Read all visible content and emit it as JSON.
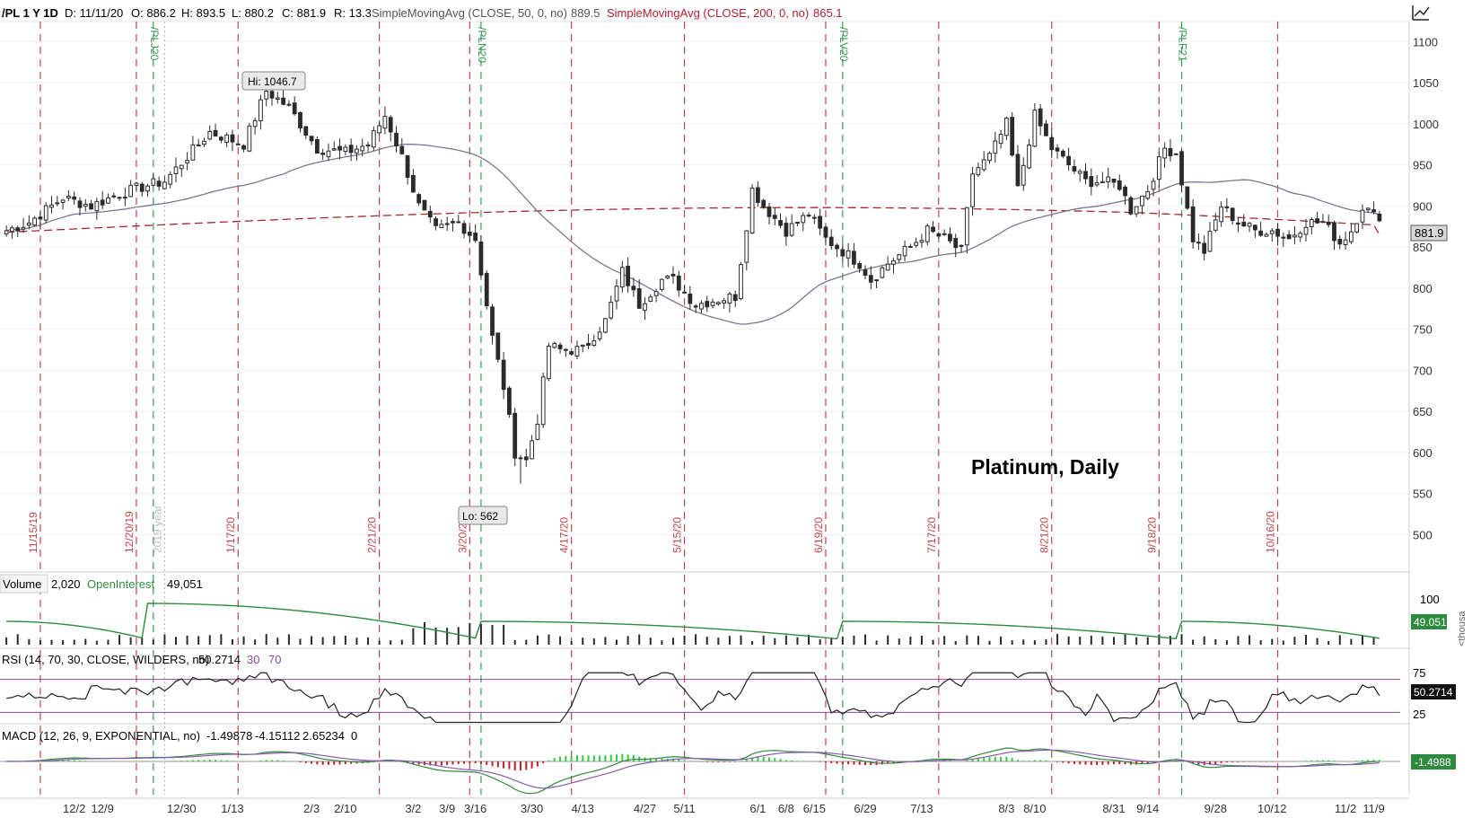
{
  "header": {
    "symbol": "/PL 1 Y 1D",
    "date": "D: 11/11/20",
    "open": "O: 886.2",
    "high": "H: 893.5",
    "low": "L: 880.2",
    "close": "C: 881.9",
    "range": "R: 13.3",
    "sma50_label": "SimpleMovingAvg (CLOSE, 50, 0, no)",
    "sma50_value": "889.5",
    "sma200_label": "SimpleMovingAvg (CLOSE, 200, 0, no)",
    "sma200_value": "865.1"
  },
  "annotation_title": "Platinum, Daily",
  "price_badge": "881.9",
  "hi_label": "Hi: 1046.7",
  "lo_label": "Lo: 562",
  "colors": {
    "up": "#2a2a2a",
    "down": "#2a2a2a",
    "sma50": "#7a7890",
    "sma200": "#a02830",
    "expiry_line": "#c0464e",
    "roll_line": "#3a9a5a",
    "rsi": "#222222",
    "rsi_bounds": "#8a4a9e",
    "macd_line": "#2e8b3e",
    "macd_signal": "#8a5ab0",
    "hist_pos": "#2fcb3f",
    "hist_neg": "#c0202a",
    "volume_bar": "#2a2a2a",
    "open_interest": "#2e8b3e"
  },
  "vertical_markers": [
    {
      "label": "11/15/19",
      "type": "expiry"
    },
    {
      "label": "12/20/19",
      "type": "expiry"
    },
    {
      "label": "/PLJ20",
      "type": "roll"
    },
    {
      "label": "2019 year",
      "type": "year"
    },
    {
      "label": "1/17/20",
      "type": "expiry"
    },
    {
      "label": "2/21/20",
      "type": "expiry"
    },
    {
      "label": "3/20/20",
      "type": "expiry"
    },
    {
      "label": "/PLN20",
      "type": "roll"
    },
    {
      "label": "4/17/20",
      "type": "expiry"
    },
    {
      "label": "5/15/20",
      "type": "expiry"
    },
    {
      "label": "6/19/20",
      "type": "expiry"
    },
    {
      "label": "/PLV20",
      "type": "roll"
    },
    {
      "label": "7/17/20",
      "type": "expiry"
    },
    {
      "label": "8/21/20",
      "type": "expiry"
    },
    {
      "label": "9/18/20",
      "type": "expiry"
    },
    {
      "label": "/PLF21",
      "type": "roll"
    },
    {
      "label": "10/16/20",
      "type": "expiry"
    }
  ],
  "volume_panel": {
    "label": "Volume",
    "value": "2,020",
    "oi_label": "OpenInterest",
    "oi_value": "49,051",
    "oi_badge": "49.051",
    "tick_top": "100",
    "unit": "<thousa"
  },
  "rsi_panel": {
    "label": "RSI (14, 70, 30, CLOSE, WILDERS, no)",
    "value": "50.2714",
    "lower": "30",
    "upper": "70",
    "badge": "50.2714",
    "ticks": [
      "75",
      "25"
    ]
  },
  "macd_panel": {
    "label": "MACD (12, 26, 9, EXPONENTIAL, no)",
    "value": "-1.49878",
    "avg": "-4.15112",
    "diff": "2.65234",
    "zero": "0",
    "badge": "-1.4988"
  },
  "chart_data": {
    "type": "candlestick",
    "title": "Platinum, Daily",
    "ylim": [
      460,
      1120
    ],
    "y_ticks": [
      500,
      550,
      600,
      650,
      700,
      750,
      800,
      850,
      900,
      950,
      1000,
      1050,
      1100
    ],
    "x_tick_labels": [
      "12/2",
      "12/9",
      "12/30",
      "1/13",
      "2/3",
      "2/10",
      "3/2",
      "3/9",
      "3/16",
      "3/30",
      "4/13",
      "4/27",
      "5/11",
      "6/1",
      "6/8",
      "6/15",
      "6/29",
      "7/13",
      "8/3",
      "8/10",
      "8/31",
      "9/14",
      "9/28",
      "10/12",
      "11/2",
      "11/9"
    ],
    "close_anchors": [
      [
        0,
        870
      ],
      [
        4,
        880
      ],
      [
        10,
        910
      ],
      [
        15,
        900
      ],
      [
        20,
        915
      ],
      [
        25,
        925
      ],
      [
        28,
        930
      ],
      [
        32,
        960
      ],
      [
        36,
        990
      ],
      [
        42,
        975
      ],
      [
        46,
        1040
      ],
      [
        50,
        1020
      ],
      [
        55,
        970
      ],
      [
        60,
        965
      ],
      [
        64,
        975
      ],
      [
        67,
        1010
      ],
      [
        70,
        960
      ],
      [
        73,
        900
      ],
      [
        76,
        870
      ],
      [
        80,
        880
      ],
      [
        83,
        860
      ],
      [
        86,
        740
      ],
      [
        88,
        680
      ],
      [
        90,
        600
      ],
      [
        92,
        590
      ],
      [
        94,
        640
      ],
      [
        96,
        730
      ],
      [
        98,
        725
      ],
      [
        102,
        725
      ],
      [
        106,
        760
      ],
      [
        109,
        820
      ],
      [
        112,
        780
      ],
      [
        116,
        810
      ],
      [
        118,
        810
      ],
      [
        122,
        780
      ],
      [
        125,
        785
      ],
      [
        129,
        790
      ],
      [
        132,
        920
      ],
      [
        134,
        900
      ],
      [
        138,
        870
      ],
      [
        142,
        890
      ],
      [
        145,
        860
      ],
      [
        148,
        845
      ],
      [
        151,
        830
      ],
      [
        153,
        810
      ],
      [
        156,
        830
      ],
      [
        160,
        850
      ],
      [
        163,
        870
      ],
      [
        166,
        860
      ],
      [
        169,
        845
      ],
      [
        171,
        940
      ],
      [
        174,
        960
      ],
      [
        177,
        1000
      ],
      [
        179,
        920
      ],
      [
        182,
        1010
      ],
      [
        185,
        970
      ],
      [
        188,
        950
      ],
      [
        191,
        930
      ],
      [
        194,
        930
      ],
      [
        197,
        925
      ],
      [
        199,
        895
      ],
      [
        202,
        920
      ],
      [
        205,
        970
      ],
      [
        207,
        965
      ],
      [
        210,
        860
      ],
      [
        212,
        845
      ],
      [
        215,
        900
      ],
      [
        218,
        880
      ],
      [
        221,
        870
      ],
      [
        224,
        870
      ],
      [
        227,
        860
      ],
      [
        230,
        880
      ],
      [
        233,
        880
      ],
      [
        236,
        855
      ],
      [
        238,
        870
      ],
      [
        240,
        900
      ],
      [
        243,
        882
      ]
    ],
    "hi": 1046.7,
    "lo": 562,
    "last": 881.9,
    "sma50_last": 889.5,
    "sma200_last": 865.1,
    "rsi_last": 50.2714,
    "macd_last": -1.49878
  }
}
